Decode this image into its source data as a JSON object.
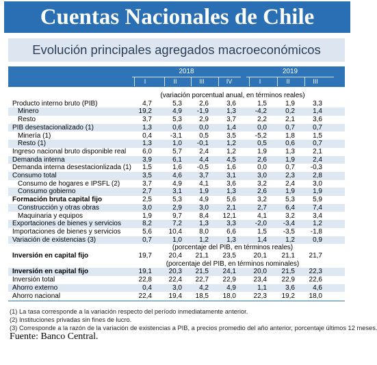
{
  "header": {
    "title": "Cuentas Nacionales de Chile",
    "subtitle": "Evolución principales agregados macroeconómicos"
  },
  "table": {
    "years": [
      {
        "label": "2018",
        "quarters": [
          "I",
          "II",
          "III",
          "IV"
        ]
      },
      {
        "label": "2019",
        "quarters": [
          "I",
          "II",
          "III"
        ]
      }
    ],
    "sections": [
      {
        "note": "(variación porcentual anual, en términos reales)",
        "rows": [
          {
            "label": "Producto interno bruto (PIB)",
            "values": [
              "4,7",
              "5,3",
              "2,6",
              "3,6",
              "1,5",
              "1,9",
              "3,3"
            ]
          },
          {
            "label": "Minero",
            "indent": true,
            "values": [
              "19,2",
              "4,9",
              "-1,9",
              "1,3",
              "-4,2",
              "0,2",
              "1,4"
            ]
          },
          {
            "label": "Resto",
            "indent": true,
            "values": [
              "3,7",
              "5,3",
              "2,9",
              "3,7",
              "2,2",
              "2,1",
              "3,6"
            ]
          },
          {
            "label": "PIB desestacionalizado (1)",
            "values": [
              "1,3",
              "0,6",
              "0,0",
              "1,4",
              "0,0",
              "0,7",
              "0,7"
            ]
          },
          {
            "label": "Minería (1)",
            "indent": true,
            "values": [
              "0,4",
              "-3,1",
              "0,5",
              "3,5",
              "-5,2",
              "1,8",
              "1,5"
            ]
          },
          {
            "label": "Resto (1)",
            "indent": true,
            "values": [
              "1,3",
              "1,0",
              "-0,1",
              "1,2",
              "0,5",
              "0,6",
              "0,7"
            ]
          },
          {
            "label": "Ingreso nacional bruto disponible real",
            "values": [
              "6,0",
              "5,7",
              "2,4",
              "1,2",
              "1,9",
              "1,3",
              "2,1"
            ]
          },
          {
            "label": "Demanda interna",
            "values": [
              "3,9",
              "6,1",
              "4,4",
              "4,5",
              "2,6",
              "1,9",
              "2,4"
            ]
          },
          {
            "label": "Demanda interna desestacionlizada (1)",
            "values": [
              "1,5",
              "1,6",
              "-0,5",
              "1,6",
              "0,0",
              "0,7",
              "-0,3"
            ]
          },
          {
            "label": "Consumo total",
            "values": [
              "3,5",
              "4,6",
              "3,7",
              "3,1",
              "3,0",
              "2,3",
              "2,8"
            ]
          },
          {
            "label": "Consumo de hogares e IPSFL (2)",
            "indent": true,
            "values": [
              "3,7",
              "4,9",
              "4,1",
              "3,6",
              "3,2",
              "2,4",
              "3,0"
            ]
          },
          {
            "label": "Consumo gobierno",
            "indent": true,
            "values": [
              "2,7",
              "3,1",
              "1,9",
              "1,3",
              "2,6",
              "1,9",
              "1,9"
            ]
          },
          {
            "label": "Formación bruta capital fijo",
            "bold": true,
            "values": [
              "2,5",
              "5,3",
              "4,9",
              "5,6",
              "3,2",
              "5,3",
              "5,9"
            ]
          },
          {
            "label": "Construcción y otras obras",
            "indent": true,
            "values": [
              "3,0",
              "2,9",
              "3,0",
              "2,1",
              "2,7",
              "6,4",
              "7,4"
            ]
          },
          {
            "label": "Maquinaria y equipos",
            "indent": true,
            "values": [
              "1,9",
              "9,7",
              "8,4",
              "12,1",
              "4,1",
              "3,2",
              "3,4"
            ]
          },
          {
            "label": "Exportaciones de bienes y servicios",
            "values": [
              "8,2",
              "7,2",
              "1,3",
              "3,3",
              "-2,0",
              "-3,4",
              "1,2"
            ]
          },
          {
            "label": "Importaciones de bienes y servicios",
            "values": [
              "5,6",
              "10,4",
              "8,0",
              "6,6",
              "1,5",
              "-3,5",
              "-1,8"
            ]
          },
          {
            "label": "Variación de existencias (3)",
            "values": [
              "0,7",
              "1,0",
              "1,2",
              "1,3",
              "1,4",
              "1,2",
              "0,9"
            ]
          }
        ]
      },
      {
        "note": "(porcentaje del PIB, en términos reales)",
        "rows": [
          {
            "label": "Inversión en capital fijo",
            "bold": true,
            "values": [
              "19,7",
              "20,4",
              "21,1",
              "23,5",
              "20,1",
              "21,1",
              "21,7"
            ]
          }
        ]
      },
      {
        "note": "(porcentaje del PIB, en términos nominales)",
        "rows": [
          {
            "label": "Inversión en capital fijo",
            "bold": true,
            "values": [
              "19,1",
              "20,3",
              "21,5",
              "24,1",
              "20,0",
              "21,5",
              "22,3"
            ]
          },
          {
            "label": "Inversión total",
            "values": [
              "22,8",
              "22,4",
              "22,7",
              "22,9",
              "23,4",
              "22,9",
              "22,6"
            ]
          },
          {
            "label": "Ahorro externo",
            "values": [
              "0,4",
              "3,0",
              "4,2",
              "4,9",
              "1,1",
              "3,6",
              "4,6"
            ]
          },
          {
            "label": "Ahorro nacional",
            "values": [
              "22,4",
              "19,4",
              "18,5",
              "18,0",
              "22,3",
              "19,2",
              "18,0"
            ]
          }
        ]
      }
    ]
  },
  "footnotes": [
    "(1) La tasa corresponde a la variación respecto del período inmediatamente anterior.",
    "(2) Instituciones privadas sin fines de lucro.",
    "(3) Corresponde a la razón de la variación de existencias a PIB, a precios promedio del año anterior, porcentaje últimos 12 meses."
  ],
  "source": "Fuente: Banco Central."
}
